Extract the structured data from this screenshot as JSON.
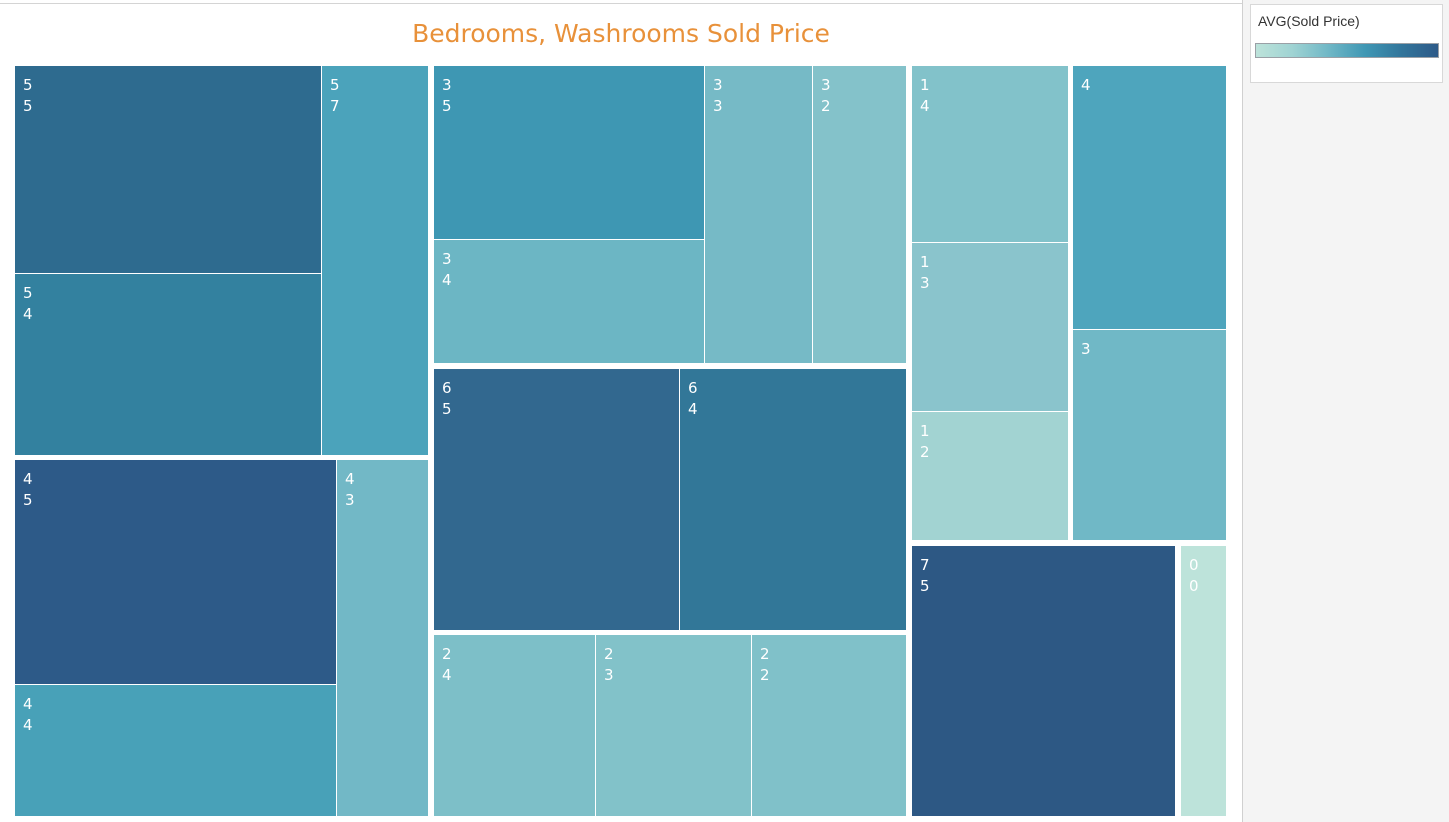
{
  "chart_data": {
    "type": "treemap",
    "title": "Bedrooms, Washrooms Sold Price",
    "color_measure": "AVG(Sold Price)",
    "color_ramp": [
      "#bde3da",
      "#9fd3d3",
      "#6fb7c6",
      "#3f97b4",
      "#32759b",
      "#2d5a88"
    ],
    "groups": [
      {
        "bedrooms": "5",
        "tiles": [
          {
            "bedrooms": "5",
            "washrooms": "5",
            "color": "#2e6b8f"
          },
          {
            "bedrooms": "5",
            "washrooms": "4",
            "color": "#33819f"
          },
          {
            "bedrooms": "5",
            "washrooms": "7",
            "color": "#4ba3bb"
          }
        ]
      },
      {
        "bedrooms": "4",
        "tiles": [
          {
            "bedrooms": "4",
            "washrooms": "5",
            "color": "#2d5a88"
          },
          {
            "bedrooms": "4",
            "washrooms": "4",
            "color": "#48a1b8"
          },
          {
            "bedrooms": "4",
            "washrooms": "3",
            "color": "#72b8c6"
          }
        ]
      },
      {
        "bedrooms": "3",
        "tiles": [
          {
            "bedrooms": "3",
            "washrooms": "5",
            "color": "#3e97b3"
          },
          {
            "bedrooms": "3",
            "washrooms": "4",
            "color": "#6cb6c4"
          },
          {
            "bedrooms": "3",
            "washrooms": "3",
            "color": "#76bac6"
          },
          {
            "bedrooms": "3",
            "washrooms": "2",
            "color": "#84c2ca"
          }
        ]
      },
      {
        "bedrooms": "6",
        "tiles": [
          {
            "bedrooms": "6",
            "washrooms": "5",
            "color": "#32688f"
          },
          {
            "bedrooms": "6",
            "washrooms": "4",
            "color": "#327798"
          }
        ]
      },
      {
        "bedrooms": "2",
        "tiles": [
          {
            "bedrooms": "2",
            "washrooms": "4",
            "color": "#7dbfc8"
          },
          {
            "bedrooms": "2",
            "washrooms": "3",
            "color": "#82c2c9"
          },
          {
            "bedrooms": "2",
            "washrooms": "2",
            "color": "#80c1c9"
          }
        ]
      },
      {
        "bedrooms": "1",
        "tiles": [
          {
            "bedrooms": "1",
            "washrooms": "4",
            "color": "#82c2ca"
          },
          {
            "bedrooms": "1",
            "washrooms": "3",
            "color": "#8ac4cc"
          },
          {
            "bedrooms": "1",
            "washrooms": "2",
            "color": "#a2d3d2"
          }
        ]
      },
      {
        "bedrooms": "4",
        "tiles": [
          {
            "bedrooms": "4",
            "washrooms": "",
            "color": "#4ea5bd"
          }
        ]
      },
      {
        "bedrooms": "3",
        "tiles": [
          {
            "bedrooms": "3",
            "washrooms": "",
            "color": "#70b8c6"
          }
        ]
      },
      {
        "bedrooms": "7",
        "tiles": [
          {
            "bedrooms": "7",
            "washrooms": "5",
            "color": "#2d5884"
          }
        ]
      },
      {
        "bedrooms": "0",
        "tiles": [
          {
            "bedrooms": "0",
            "washrooms": "0",
            "color": "#bde3da"
          }
        ]
      }
    ]
  },
  "legend": {
    "title": "AVG(Sold Price)"
  }
}
